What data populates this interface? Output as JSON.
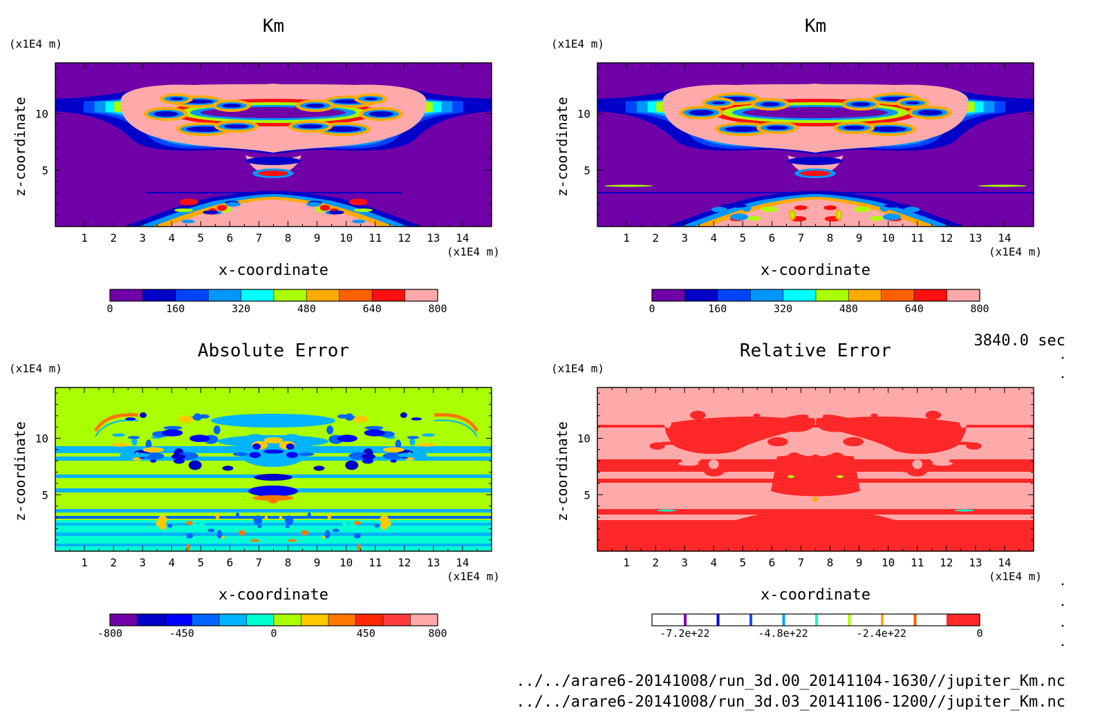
{
  "time_label": "3840.0 sec",
  "files": [
    "../../arare6-20141008/run_3d.00_20141104-1630//jupiter_Km.nc",
    "../../arare6-20141008/run_3d.03_20141106-1200//jupiter_Km.nc"
  ],
  "colors": {
    "km": [
      "#7000a8",
      "#0000c8",
      "#0044ff",
      "#0096ff",
      "#00ffff",
      "#aaff00",
      "#ffaa00",
      "#ff6000",
      "#ff1010",
      "#ffaaaa"
    ],
    "abs": [
      "#7000a8",
      "#0000c8",
      "#0000ff",
      "#0064ff",
      "#00b4ff",
      "#00ffd2",
      "#aaff00",
      "#ffc800",
      "#ff7800",
      "#ff2800",
      "#ff3c3c",
      "#ffaaaa"
    ],
    "rel_marks": [
      "#8000b0",
      "#0000ff",
      "#0050ff",
      "#00a0ff",
      "#00ffc8",
      "#aaff00",
      "#ffaa00",
      "#ff6000"
    ],
    "rel_end": "#ff2828"
  },
  "chart_data": [
    {
      "type": "heatmap",
      "title": "Km",
      "xlabel": "x-coordinate",
      "ylabel": "z-coordinate",
      "xunit": "(x1E4 m)",
      "yunit": "(x1E4 m)",
      "xlim": [
        0,
        15
      ],
      "ylim": [
        0,
        14.5
      ],
      "xticks": [
        1,
        2,
        3,
        4,
        5,
        6,
        7,
        8,
        9,
        10,
        11,
        12,
        13,
        14
      ],
      "yticks": [
        5,
        10
      ],
      "colorbar": {
        "min": 0,
        "max": 800,
        "levels": 10,
        "ticks": [
          0,
          160,
          320,
          480,
          640,
          800
        ],
        "ticklabels": [
          "0",
          "160",
          "320",
          "480",
          "640",
          "800"
        ]
      }
    },
    {
      "type": "heatmap",
      "title": "Km",
      "xlabel": "x-coordinate",
      "ylabel": "z-coordinate",
      "xunit": "(x1E4 m)",
      "yunit": "(x1E4 m)",
      "xlim": [
        0,
        15
      ],
      "ylim": [
        0,
        14.5
      ],
      "xticks": [
        1,
        2,
        3,
        4,
        5,
        6,
        7,
        8,
        9,
        10,
        11,
        12,
        13,
        14
      ],
      "yticks": [
        5,
        10
      ],
      "colorbar": {
        "min": 0,
        "max": 800,
        "levels": 10,
        "ticks": [
          0,
          160,
          320,
          480,
          640,
          800
        ],
        "ticklabels": [
          "0",
          "160",
          "320",
          "480",
          "640",
          "800"
        ]
      }
    },
    {
      "type": "heatmap",
      "title": "Absolute Error",
      "xlabel": "x-coordinate",
      "ylabel": "z-coordinate",
      "xunit": "(x1E4 m)",
      "yunit": "(x1E4 m)",
      "xlim": [
        0,
        15
      ],
      "ylim": [
        0,
        14.5
      ],
      "xticks": [
        1,
        2,
        3,
        4,
        5,
        6,
        7,
        8,
        9,
        10,
        11,
        12,
        13,
        14
      ],
      "yticks": [
        5,
        10
      ],
      "colorbar": {
        "min": -800,
        "max": 800,
        "levels": 12,
        "ticks": [
          -800,
          -450,
          0,
          450,
          800
        ],
        "ticklabels": [
          "-800",
          "-450",
          "0",
          "450",
          "800"
        ]
      }
    },
    {
      "type": "heatmap",
      "title": "Relative Error",
      "xlabel": "x-coordinate",
      "ylabel": "z-coordinate",
      "xunit": "(x1E4 m)",
      "yunit": "(x1E4 m)",
      "xlim": [
        0,
        15
      ],
      "ylim": [
        0,
        14.5
      ],
      "xticks": [
        1,
        2,
        3,
        4,
        5,
        6,
        7,
        8,
        9,
        10,
        11,
        12,
        13,
        14
      ],
      "yticks": [
        5,
        10
      ],
      "colorbar": {
        "min": -8e+22,
        "max": 0,
        "ticks": [
          -7.2e+22,
          -4.8e+22,
          -2.4e+22,
          0
        ],
        "ticklabels": [
          "-7.2e+22",
          "-4.8e+22",
          "-2.4e+22",
          "0"
        ]
      }
    }
  ]
}
